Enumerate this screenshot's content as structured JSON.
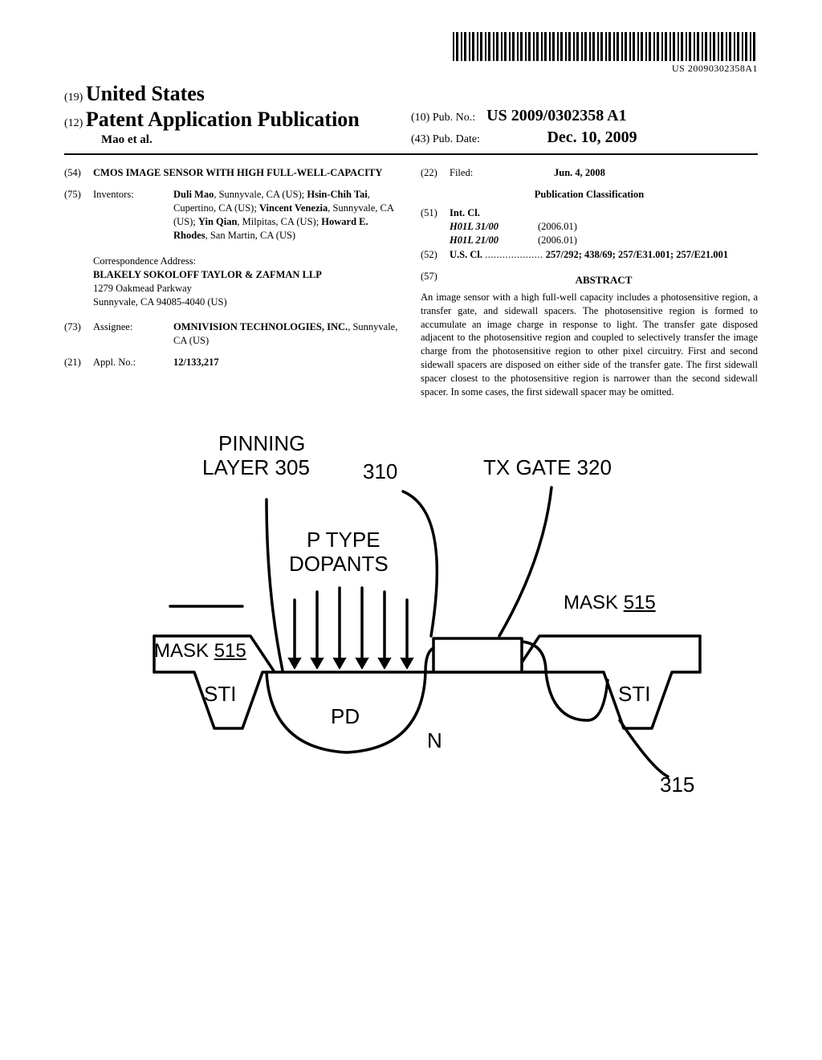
{
  "barcode_text": "US 20090302358A1",
  "header": {
    "country_code": "(19)",
    "country": "United States",
    "pub_type_code": "(12)",
    "pub_type": "Patent Application Publication",
    "author_line": "Mao et al.",
    "pubno_code": "(10)",
    "pubno_label": "Pub. No.:",
    "pubno": "US 2009/0302358 A1",
    "pubdate_code": "(43)",
    "pubdate_label": "Pub. Date:",
    "pubdate": "Dec. 10, 2009"
  },
  "left": {
    "title_code": "(54)",
    "title": "CMOS IMAGE SENSOR WITH HIGH FULL-WELL-CAPACITY",
    "inventors_code": "(75)",
    "inventors_label": "Inventors:",
    "inventors_html": "Duli Mao, Sunnyvale, CA (US); Hsin-Chih Tai, Cupertino, CA (US); Vincent Venezia, Sunnyvale, CA (US); Yin Qian, Milpitas, CA (US); Howard E. Rhodes, San Martin, CA (US)",
    "inventors": [
      {
        "name": "Duli Mao",
        "loc": ", Sunnyvale, CA (US); "
      },
      {
        "name": "Hsin-Chih Tai",
        "loc": ", Cupertino, CA (US); "
      },
      {
        "name": "Vincent Venezia",
        "loc": ", Sunnyvale, CA (US); "
      },
      {
        "name": "Yin Qian",
        "loc": ", Milpitas, CA (US); "
      },
      {
        "name": "Howard E. Rhodes",
        "loc": ", San Martin, CA (US)"
      }
    ],
    "corr_label": "Correspondence Address:",
    "corr_lines": [
      "BLAKELY SOKOLOFF TAYLOR & ZAFMAN LLP",
      "1279 Oakmead Parkway",
      "Sunnyvale, CA 94085-4040 (US)"
    ],
    "assignee_code": "(73)",
    "assignee_label": "Assignee:",
    "assignee_name": "OMNIVISION TECHNOLOGIES, INC.",
    "assignee_loc": ", Sunnyvale, CA (US)",
    "applno_code": "(21)",
    "applno_label": "Appl. No.:",
    "applno": "12/133,217"
  },
  "right": {
    "filed_code": "(22)",
    "filed_label": "Filed:",
    "filed": "Jun. 4, 2008",
    "pub_class": "Publication Classification",
    "intcl_code": "(51)",
    "intcl_label": "Int. Cl.",
    "intcl": [
      {
        "code": "H01L 31/00",
        "year": "(2006.01)"
      },
      {
        "code": "H01L 21/00",
        "year": "(2006.01)"
      }
    ],
    "uscl_code": "(52)",
    "uscl_label": "U.S. Cl.",
    "uscl_dots": "....................",
    "uscl_val": "257/292; 438/69; 257/E31.001; 257/E21.001",
    "abstract_code": "(57)",
    "abstract_label": "ABSTRACT",
    "abstract": "An image sensor with a high full-well capacity includes a photosensitive region, a transfer gate, and sidewall spacers. The photosensitive region is formed to accumulate an image charge in response to light. The transfer gate disposed adjacent to the photosensitive region and coupled to selectively transfer the image charge from the photosensitive region to other pixel circuitry. First and second sidewall spacers are disposed on either side of the transfer gate. The first sidewall spacer closest to the photosensitive region is narrower than the second sidewall spacer. In some cases, the first sidewall spacer may be omitted."
  },
  "figure": {
    "labels": {
      "pinning": "PINNING",
      "layer305": "LAYER 305",
      "num310": "310",
      "txgate": "TX GATE 320",
      "ptype": "P TYPE",
      "dopants": "DOPANTS",
      "mask515_l": "MASK ",
      "mask515_l_u": "515",
      "mask515_r": "MASK ",
      "mask515_r_u": "515",
      "sti_l": "STI",
      "sti_r": "STI",
      "pd": "PD",
      "n": "N",
      "num315": "315"
    },
    "colors": {
      "stroke": "#000000",
      "fill": "#ffffff"
    },
    "stroke_width": 3.5,
    "arrow_len": 60
  }
}
